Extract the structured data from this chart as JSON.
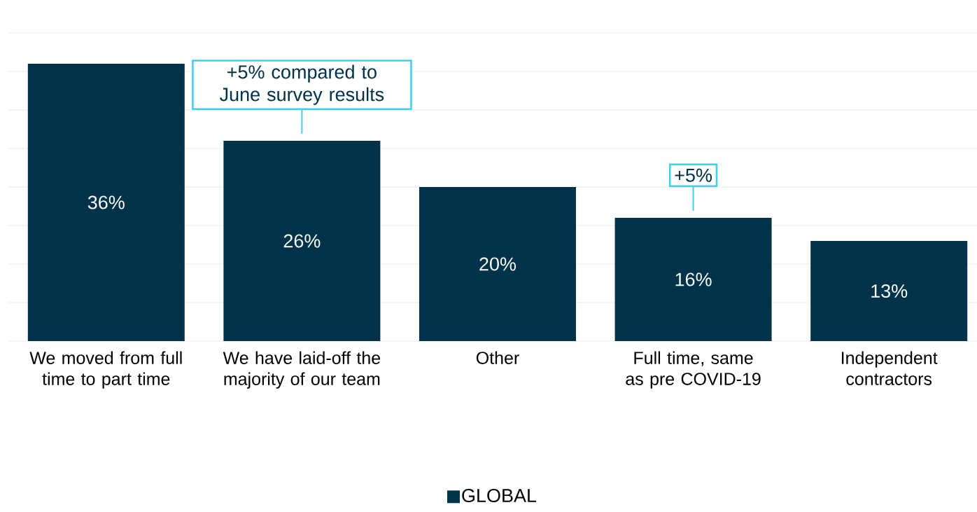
{
  "chart_data": {
    "type": "bar",
    "categories": [
      "We moved from full time to part time",
      "We have laid-off the majority of our team",
      "Other",
      "Full time, same as pre COVID-19",
      "Independent contractors"
    ],
    "series": [
      {
        "name": "GLOBAL",
        "color": "#00324a",
        "values": [
          36,
          26,
          20,
          16,
          13
        ],
        "value_labels": [
          "36%",
          "26%",
          "20%",
          "16%",
          "13%"
        ]
      }
    ],
    "ylim": [
      0,
      40
    ],
    "yticks": [
      {
        "value": 0,
        "label": null
      },
      {
        "value": 5,
        "label": null
      },
      {
        "value": 10,
        "label": null
      },
      {
        "value": 15,
        "label": null
      },
      {
        "value": 20,
        "label": null
      },
      {
        "value": 25,
        "label": null
      },
      {
        "value": 30,
        "label": null
      },
      {
        "value": 35,
        "label": null
      },
      {
        "value": 40,
        "label": null
      }
    ],
    "tick_labels": "x",
    "grid": "y",
    "legend": "bottom",
    "annotations": [
      {
        "text": "+5% compared to June survey results",
        "x": "We have laid-off the majority of our team",
        "y": 26
      },
      {
        "text": "+5%",
        "x": "Full time, same as pre COVID-19",
        "y": 16
      }
    ]
  }
}
